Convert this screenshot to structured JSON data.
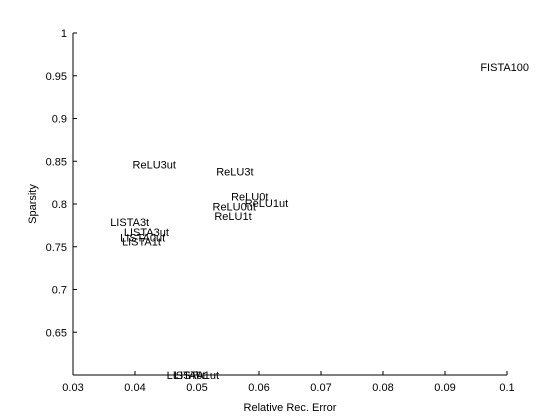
{
  "chart_data": {
    "type": "scatter",
    "title": "",
    "xlabel": "Relative Rec. Error",
    "ylabel": "Sparsity",
    "xlim": [
      0.03,
      0.1
    ],
    "ylim": [
      0.6,
      1.0
    ],
    "xticks": [
      "0.03",
      "0.04",
      "0.05",
      "0.06",
      "0.07",
      "0.08",
      "0.09",
      "0.1"
    ],
    "yticks": [
      "0.65",
      "0.7",
      "0.75",
      "0.8",
      "0.85",
      "0.9",
      "0.95",
      "1"
    ],
    "grid": false,
    "points": [
      {
        "label": "FISTA100",
        "x": 0.0957,
        "y": 0.96
      },
      {
        "label": "ReLU3ut",
        "x": 0.0396,
        "y": 0.846
      },
      {
        "label": "ReLU3t",
        "x": 0.0531,
        "y": 0.838
      },
      {
        "label": "ReLU0t",
        "x": 0.0555,
        "y": 0.809
      },
      {
        "label": "ReLU1ut",
        "x": 0.0577,
        "y": 0.801
      },
      {
        "label": "ReLU0ut",
        "x": 0.0525,
        "y": 0.797
      },
      {
        "label": "ReLU1t",
        "x": 0.0528,
        "y": 0.786
      },
      {
        "label": "LISTA3t",
        "x": 0.036,
        "y": 0.779
      },
      {
        "label": "LISTA3ut",
        "x": 0.0382,
        "y": 0.767
      },
      {
        "label": "LISTA0ut",
        "x": 0.0376,
        "y": 0.761
      },
      {
        "label": "LISTA1t",
        "x": 0.0379,
        "y": 0.756
      },
      {
        "label": "LISTA0t",
        "x": 0.0451,
        "y": 0.6
      },
      {
        "label": "LISTA1ut",
        "x": 0.0463,
        "y": 0.6
      }
    ]
  }
}
